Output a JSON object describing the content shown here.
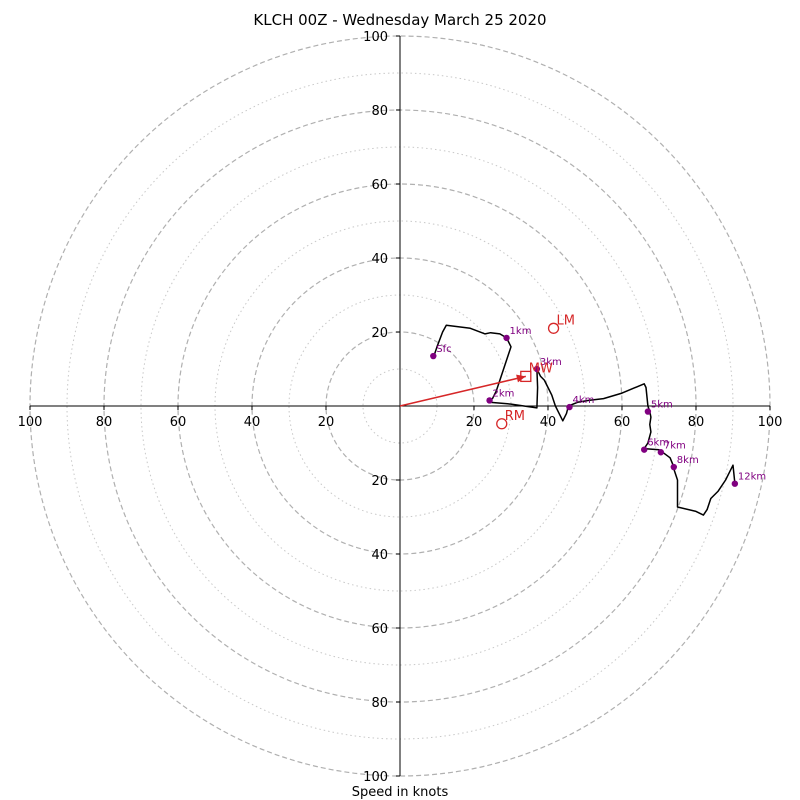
{
  "chart_data": {
    "type": "hodograph",
    "title": "KLCH 00Z - Wednesday March 25 2020",
    "xlabel": "Speed in knots",
    "units": "knots",
    "xlim": [
      -100,
      100
    ],
    "ylim": [
      -100,
      100
    ],
    "ring_labels": [
      "20",
      "40",
      "60",
      "80",
      "100"
    ],
    "ring_values": [
      20,
      40,
      60,
      80,
      100
    ],
    "x_ticks": [
      {
        "v": -100,
        "label": "100"
      },
      {
        "v": -80,
        "label": "80"
      },
      {
        "v": -60,
        "label": "60"
      },
      {
        "v": -40,
        "label": "40"
      },
      {
        "v": -20,
        "label": "20"
      },
      {
        "v": 20,
        "label": "20"
      },
      {
        "v": 40,
        "label": "40"
      },
      {
        "v": 60,
        "label": "60"
      },
      {
        "v": 80,
        "label": "80"
      },
      {
        "v": 100,
        "label": "100"
      }
    ],
    "y_ticks": [
      {
        "v": 100,
        "label": "100"
      },
      {
        "v": 80,
        "label": "80"
      },
      {
        "v": 60,
        "label": "60"
      },
      {
        "v": 40,
        "label": "40"
      },
      {
        "v": 20,
        "label": "20"
      },
      {
        "v": -20,
        "label": "20"
      },
      {
        "v": -40,
        "label": "40"
      },
      {
        "v": -60,
        "label": "60"
      },
      {
        "v": -80,
        "label": "80"
      },
      {
        "v": -100,
        "label": "100"
      }
    ],
    "grid": true,
    "trace": [
      [
        9,
        13
      ],
      [
        10,
        16
      ],
      [
        11.5,
        20
      ],
      [
        12.5,
        21.8
      ],
      [
        19,
        21
      ],
      [
        23,
        19.5
      ],
      [
        24.5,
        19.8
      ],
      [
        27,
        19.5
      ],
      [
        28.8,
        18.4
      ],
      [
        30,
        16
      ],
      [
        29,
        13
      ],
      [
        28,
        10
      ],
      [
        27,
        7
      ],
      [
        26,
        4
      ],
      [
        25,
        2
      ],
      [
        24,
        1.5
      ],
      [
        24.2,
        1
      ],
      [
        30,
        0.5
      ],
      [
        37,
        -0.5
      ],
      [
        37.2,
        5
      ],
      [
        37,
        10
      ],
      [
        38,
        8
      ],
      [
        39,
        7
      ],
      [
        40,
        5
      ],
      [
        41,
        3
      ],
      [
        42,
        0
      ],
      [
        43,
        -2
      ],
      [
        44,
        -4
      ],
      [
        45,
        -2
      ],
      [
        45.5,
        0
      ],
      [
        48,
        1
      ],
      [
        51,
        1.5
      ],
      [
        55,
        2
      ],
      [
        60,
        3.5
      ],
      [
        66,
        6
      ],
      [
        66.5,
        5
      ],
      [
        67,
        0
      ],
      [
        67.5,
        -1.5
      ],
      [
        67.8,
        -3
      ],
      [
        67.5,
        -5
      ],
      [
        67.8,
        -7
      ],
      [
        67,
        -10
      ],
      [
        66,
        -11.5
      ],
      [
        70,
        -11.8
      ],
      [
        71,
        -12.5
      ],
      [
        73,
        -14
      ],
      [
        73.8,
        -16
      ],
      [
        74,
        -17
      ],
      [
        75,
        -20
      ],
      [
        75,
        -23
      ],
      [
        75,
        -27.3
      ],
      [
        80,
        -28.5
      ],
      [
        82,
        -29.5
      ],
      [
        83,
        -28
      ],
      [
        84,
        -25
      ],
      [
        86,
        -23
      ],
      [
        88,
        -20
      ],
      [
        89,
        -18
      ],
      [
        90,
        -16
      ],
      [
        90.5,
        -21
      ]
    ],
    "height_markers": [
      {
        "label": "Sfc",
        "u": 9,
        "v": 13.5
      },
      {
        "label": "1km",
        "u": 28.8,
        "v": 18.4
      },
      {
        "label": "2km",
        "u": 24.2,
        "v": 1.5
      },
      {
        "label": "3km",
        "u": 37,
        "v": 10
      },
      {
        "label": "4km",
        "u": 45.8,
        "v": -0.3
      },
      {
        "label": "5km",
        "u": 67,
        "v": -1.5
      },
      {
        "label": "6km",
        "u": 66,
        "v": -11.8
      },
      {
        "label": "7km",
        "u": 70.5,
        "v": -12.5
      },
      {
        "label": "8km",
        "u": 74,
        "v": -16.5
      },
      {
        "label": "12km",
        "u": 90.5,
        "v": -21
      }
    ],
    "storm_motions": [
      {
        "label": "LM",
        "u": 41.5,
        "v": 21
      },
      {
        "label": "MW",
        "u": 34,
        "v": 8
      },
      {
        "label": "RM",
        "u": 27.5,
        "v": -4.8
      }
    ],
    "mean_wind_vector": {
      "from": [
        0,
        0
      ],
      "to": [
        34,
        8
      ]
    },
    "colors": {
      "trace": "#000000",
      "markers": "#800080",
      "storm_motion": "#d62728",
      "dashed_grid": "#b0b0b0",
      "dotted_grid": "#c8c8c8"
    }
  }
}
